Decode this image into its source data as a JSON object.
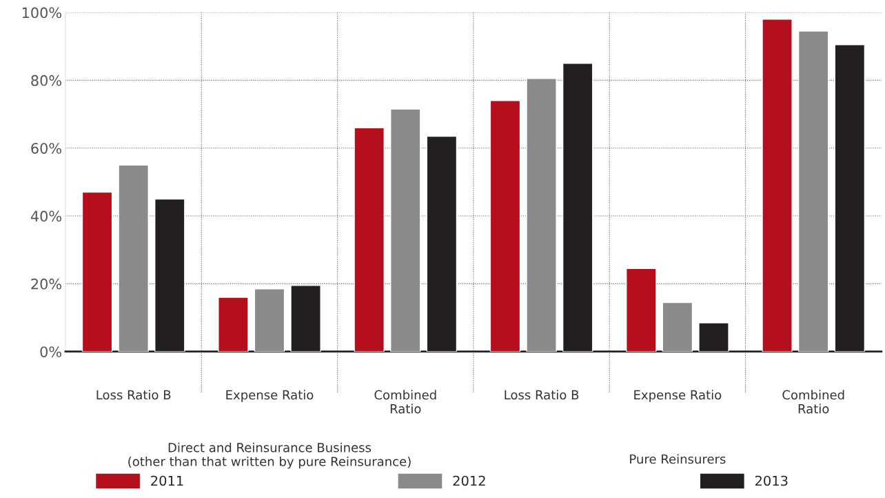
{
  "chart_data": {
    "type": "bar",
    "categories": [
      "Loss Ratio B",
      "Expense Ratio",
      "Combined\nRatio",
      "Loss Ratio B",
      "Expense Ratio",
      "Combined\nRatio"
    ],
    "series": [
      {
        "name": "2011",
        "color": "#b50e1c",
        "values": [
          47,
          16,
          66,
          74,
          24.5,
          98
        ]
      },
      {
        "name": "2012",
        "color": "#8a8a8d",
        "values": [
          55,
          18.5,
          71.5,
          80.5,
          14.5,
          94.5
        ]
      },
      {
        "name": "2013",
        "color": "#231f20",
        "values": [
          45,
          19.5,
          63.5,
          85,
          8.5,
          90.5
        ]
      }
    ],
    "ylim": [
      0,
      100
    ],
    "yticks": [
      {
        "value": 0,
        "label": "0%"
      },
      {
        "value": 20,
        "label": "20%"
      },
      {
        "value": 40,
        "label": "40%"
      },
      {
        "value": 60,
        "label": "60%"
      },
      {
        "value": 80,
        "label": "80%"
      },
      {
        "value": 100,
        "label": "100%"
      }
    ],
    "grid": true,
    "legend": "bottom",
    "annotations": [
      "Direct and Reinsurance Business\n(other than that written by pure Reinsurance)",
      "Pure Reinsurers"
    ]
  }
}
